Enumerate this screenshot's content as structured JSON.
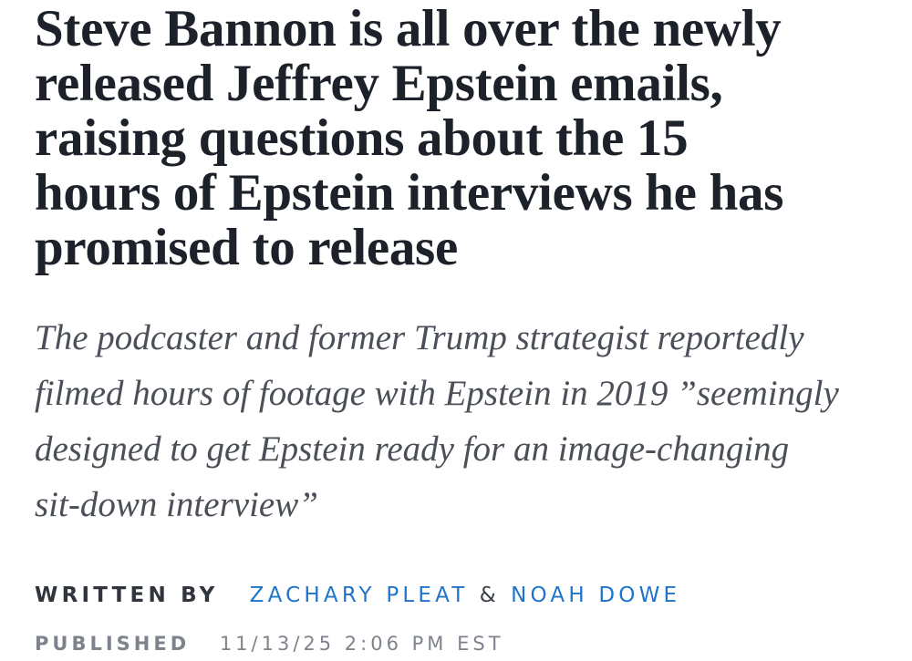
{
  "headline": {
    "lines": [
      "Steve Bannon is all over the newly",
      "released Jeffrey Epstein emails,",
      "raising questions about the 15",
      "hours of Epstein interviews he has",
      "promised to release"
    ]
  },
  "dek": {
    "lines": [
      "The podcaster and former Trump strategist reportedly",
      "filmed hours of footage with Epstein in 2019 ”seemingly",
      "designed to get Epstein ready for an image-changing",
      "sit-down interview”"
    ]
  },
  "byline": {
    "label": "WRITTEN BY",
    "authors": [
      "ZACHARY PLEAT",
      "NOAH DOWE"
    ],
    "separator": "&"
  },
  "published": {
    "label": "PUBLISHED",
    "datetime": "11/13/25 2:06 PM EST"
  },
  "colors": {
    "text": "#1c212a",
    "link": "#1f74c9",
    "muted": "#7d838c"
  }
}
